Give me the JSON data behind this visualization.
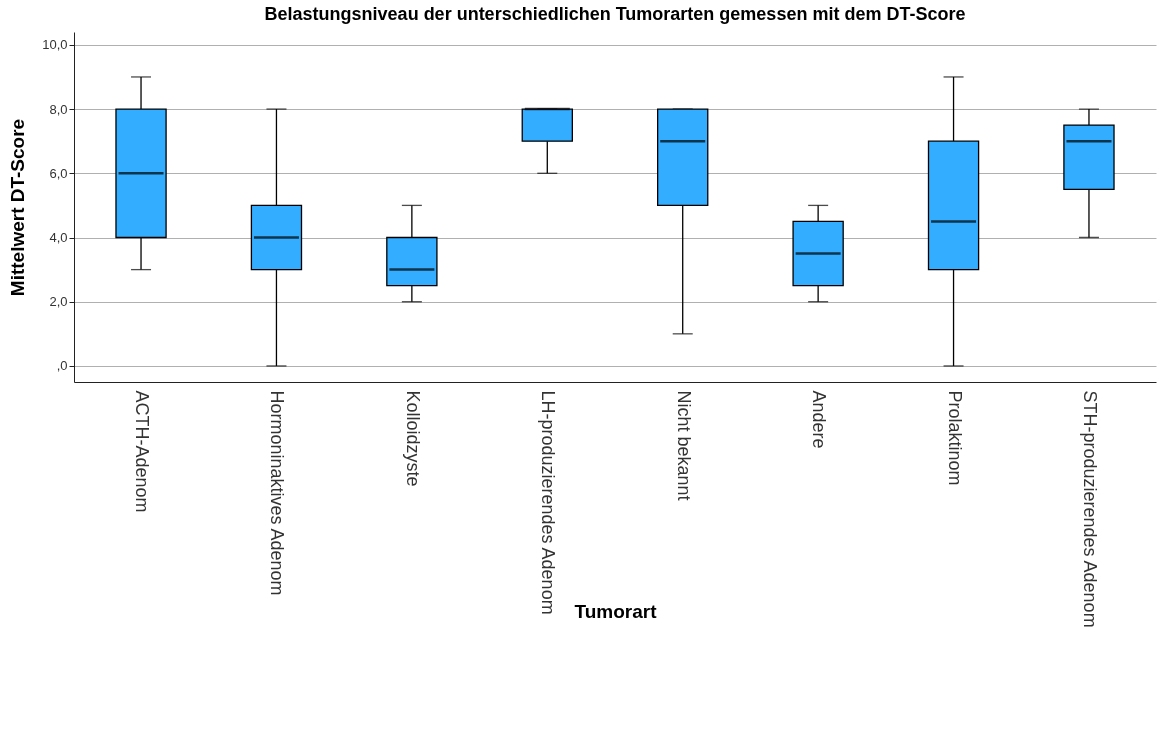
{
  "chart_data": {
    "type": "box",
    "title": "Belastungsniveau der unterschiedlichen Tumorarten gemessen mit dem DT-Score",
    "xlabel": "Tumorart",
    "ylabel": "Mittelwert DT-Score",
    "categories": [
      "ACTH-Adenom",
      "Hormoninaktives Adenom",
      "Kolloidzyste",
      "LH-produzierendes Adenom",
      "Nicht bekannt",
      "Andere",
      "Prolaktinom",
      "STH-produzierendes Adenom"
    ],
    "boxes": [
      {
        "low": 3,
        "q1": 4,
        "median": 6,
        "q3": 8,
        "high": 9
      },
      {
        "low": 0,
        "q1": 3,
        "median": 4,
        "q3": 5,
        "high": 8
      },
      {
        "low": 2,
        "q1": 2.5,
        "median": 3,
        "q3": 4,
        "high": 5
      },
      {
        "low": 6,
        "q1": 7,
        "median": 8,
        "q3": 8,
        "high": 8
      },
      {
        "low": 1,
        "q1": 5,
        "median": 7,
        "q3": 8,
        "high": 8
      },
      {
        "low": 2,
        "q1": 2.5,
        "median": 3.5,
        "q3": 4.5,
        "high": 5
      },
      {
        "low": 0,
        "q1": 3,
        "median": 4.5,
        "q3": 7,
        "high": 9
      },
      {
        "low": 4,
        "q1": 5.5,
        "median": 7,
        "q3": 7.5,
        "high": 8
      }
    ],
    "color": "#33adff",
    "ylim": [
      -0.5,
      10.4
    ],
    "yticks": [
      {
        "value": 0,
        "label": ",0"
      },
      {
        "value": 2,
        "label": "2,0"
      },
      {
        "value": 4,
        "label": "4,0"
      },
      {
        "value": 6,
        "label": "6,0"
      },
      {
        "value": 8,
        "label": "8,0"
      },
      {
        "value": 10,
        "label": "10,0"
      }
    ],
    "grid": "y"
  }
}
